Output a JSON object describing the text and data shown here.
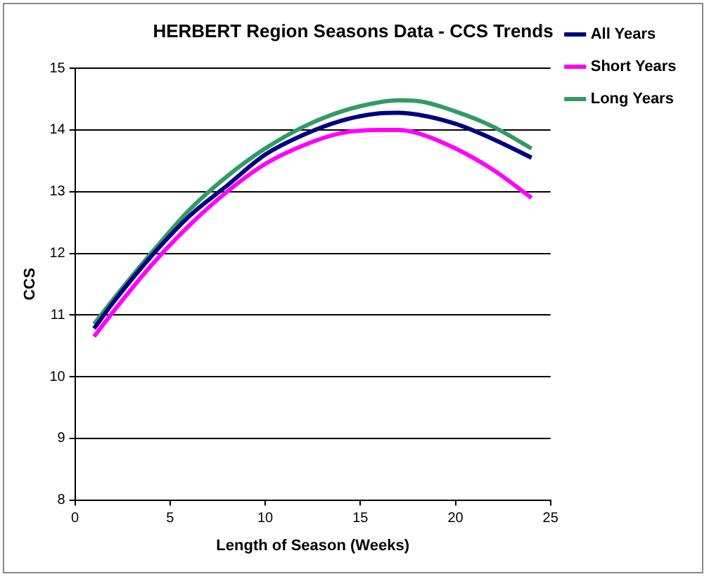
{
  "chart_data": {
    "type": "line",
    "title": "HERBERT Region Seasons Data - CCS Trends",
    "xlabel": "Length of Season (Weeks)",
    "ylabel": "CCS",
    "x": [
      1,
      2,
      4,
      6,
      8,
      10,
      12,
      14,
      16,
      17,
      18,
      20,
      22,
      24
    ],
    "series": [
      {
        "name": "All Years",
        "color": "#000080",
        "values": [
          10.78,
          11.2,
          11.95,
          12.6,
          13.1,
          13.6,
          13.92,
          14.15,
          14.27,
          14.28,
          14.25,
          14.1,
          13.85,
          13.55
        ]
      },
      {
        "name": "Short Years",
        "color": "#ff00ff",
        "values": [
          10.65,
          11.05,
          11.8,
          12.45,
          13.0,
          13.45,
          13.75,
          13.95,
          14.0,
          14.0,
          13.95,
          13.7,
          13.35,
          12.9
        ]
      },
      {
        "name": "Long Years",
        "color": "#339966",
        "values": [
          10.85,
          11.25,
          12.0,
          12.7,
          13.25,
          13.7,
          14.05,
          14.3,
          14.45,
          14.48,
          14.47,
          14.3,
          14.05,
          13.7
        ]
      }
    ],
    "xlim": [
      0,
      25
    ],
    "xticks": [
      0,
      5,
      10,
      15,
      20,
      25
    ],
    "ylim": [
      8,
      15
    ],
    "yticks": [
      8,
      9,
      10,
      11,
      12,
      13,
      14,
      15
    ],
    "grid": "y",
    "legend": "right",
    "marker": "none",
    "line_style": "solid"
  }
}
